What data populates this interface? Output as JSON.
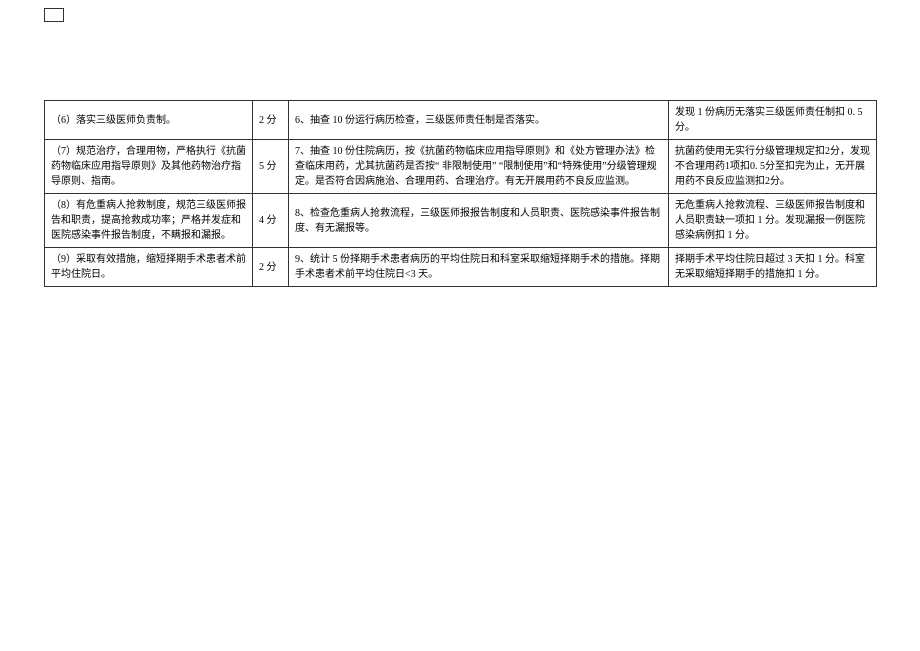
{
  "table": {
    "rows": [
      {
        "item": "（6）落实三级医师负责制。",
        "score": "2 分",
        "detail": "6、抽查 10 份运行病历检查，三级医师责任制是否落实。",
        "deduct": "发现 1 份病历无落实三级医师责任制扣 0. 5 分。"
      },
      {
        "item": "（7）规范治疗，合理用物，严格执行《抗菌药物临床应用指导原则》及其他药物治疗指导原则、指南。",
        "score": "5 分",
        "detail": "7、抽查 10 份住院病历，按《抗菌药物临床应用指导原则》和《处方管理办法》检查临床用药，尤其抗菌药是否按“ 非限制使用” “限制使用”和“特殊使用”分级管理规定。是否符合因病施治、合理用药、合理治疗。有无开展用药不良反应监测。",
        "deduct": "抗菌药使用无实行分级管理规定扣2分，发现不合理用药1项扣0. 5分至扣完为止，无开展用药不良反应监测扣2分。"
      },
      {
        "item": "（8）有危重病人抢救制度，规范三级医师报告和职责，提高抢救成功率；严格并发症和医院感染事件报告制度，不瞒报和漏报。",
        "score": "4 分",
        "detail": "8、检查危重病人抢救流程，三级医师报报告制度和人员职责、医院感染事件报告制度、有无漏报等。",
        "deduct": "无危重病人抢救流程、三级医师报告制度和人员职责缺一项扣 1 分。发现漏报一例医院感染病例扣 1 分。"
      },
      {
        "item": "（9）采取有效措施，缩短择期手术患者术前平均住院日。",
        "score": "2 分",
        "detail": "9、统计 5 份择期手术患者病历的平均住院日和科室采取缩短择期手术的措施。择期手术患者术前平均住院日<3 天。",
        "deduct": "择期手术平均住院日超过 3 天扣 1 分。科室无采取缩短择期手的措施扣 1 分。"
      }
    ],
    "column_widths": {
      "item": 208,
      "score": 36,
      "detail": 380,
      "deduct": 208
    },
    "border_color": "#333333",
    "font_size": 10,
    "text_color": "#000000",
    "background_color": "#ffffff"
  }
}
